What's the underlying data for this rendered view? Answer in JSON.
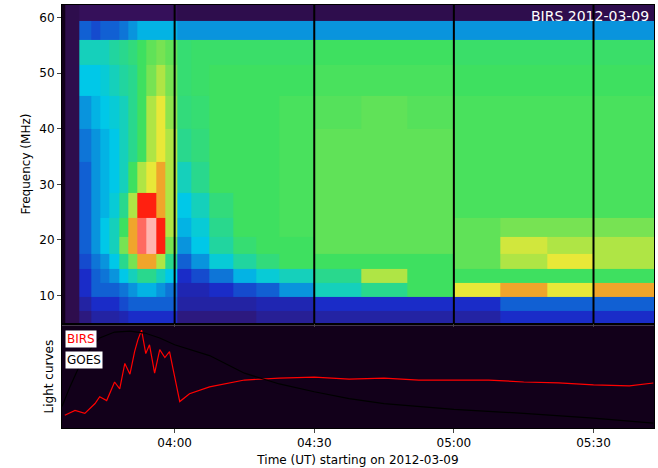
{
  "chart_data": [
    {
      "type": "heatmap",
      "title": "BIRS 2012-03-09",
      "ylabel": "Frequency (MHz)",
      "xlim": [
        "2012-03-09 03:35:48",
        "2012-03-09 05:43:00"
      ],
      "xticks": [
        {
          "value": "2012-03-09 04:00",
          "label": "04:00"
        },
        {
          "value": "2012-03-09 04:30",
          "label": "04:30"
        },
        {
          "value": "2012-03-09 05:00",
          "label": "05:00"
        },
        {
          "value": "2012-03-09 05:30",
          "label": "05:30"
        }
      ],
      "ylim": [
        5,
        62.3
      ],
      "yticks": [
        10,
        20,
        30,
        40,
        50,
        60
      ],
      "tick_labels": "y",
      "grid": true,
      "zlim": [
        0,
        10
      ],
      "x": [
        "2012-03-09 03:38",
        "2012-03-09 03:41",
        "2012-03-09 03:43",
        "2012-03-09 03:45",
        "2012-03-09 03:47",
        "2012-03-09 03:49",
        "2012-03-09 03:51",
        "2012-03-09 03:53",
        "2012-03-09 03:55",
        "2012-03-09 03:57",
        "2012-03-09 03:59",
        "2012-03-09 04:02",
        "2012-03-09 04:05",
        "2012-03-09 04:10",
        "2012-03-09 04:15",
        "2012-03-09 04:20",
        "2012-03-09 04:25",
        "2012-03-09 04:35",
        "2012-03-09 04:45",
        "2012-03-09 04:55",
        "2012-03-09 05:05",
        "2012-03-09 05:15",
        "2012-03-09 05:25",
        "2012-03-09 05:35",
        "2012-03-09 05:42"
      ],
      "y": [
        6,
        8.5,
        11,
        13.5,
        16,
        19,
        22,
        26,
        31,
        37,
        43,
        49,
        54,
        58,
        61
      ],
      "z": [
        [
          0.8,
          1.5,
          2,
          2,
          2,
          2.2,
          2.5,
          2.5,
          2.5,
          2.5,
          2.5,
          1.5,
          1.5,
          1.5,
          1.5,
          1.8,
          1.8,
          2,
          2,
          2,
          2,
          2.5,
          2.5,
          2.5,
          2.5
        ],
        [
          0.8,
          2,
          2.5,
          2.5,
          2.5,
          2.8,
          3,
          3,
          3,
          3,
          3,
          2,
          2,
          2,
          2,
          2.2,
          2.2,
          2.5,
          2.5,
          2.5,
          2.5,
          3,
          3,
          3,
          3
        ],
        [
          0.8,
          2.5,
          3,
          3,
          3,
          3.2,
          3.5,
          3.8,
          3.8,
          3.5,
          3.2,
          2.2,
          2.2,
          2.5,
          2.8,
          3,
          3.5,
          4.5,
          5,
          5.5,
          7,
          7.5,
          7,
          7.5,
          7.5
        ],
        [
          0.8,
          2.5,
          3,
          3.2,
          3.5,
          4,
          4.5,
          5,
          5,
          4.5,
          4,
          2.5,
          2.8,
          3.2,
          3.8,
          4.2,
          4.5,
          5,
          6.5,
          5.5,
          5.5,
          5.5,
          5.5,
          5.5,
          5.5
        ],
        [
          0.8,
          2.8,
          3.2,
          3.5,
          4,
          5,
          6,
          7.5,
          7.5,
          6.5,
          5,
          3,
          3.5,
          4.2,
          4.8,
          5.2,
          5.5,
          5.5,
          5.5,
          5.5,
          5.8,
          6.5,
          7,
          6.5,
          6.5
        ],
        [
          0.8,
          3,
          3.5,
          4,
          4.5,
          6,
          7.5,
          9,
          9.5,
          8.5,
          6,
          3.5,
          4,
          4.8,
          5.3,
          5.5,
          5.5,
          5.8,
          5.8,
          5.8,
          5.8,
          6.8,
          6.5,
          6.5,
          6.5
        ],
        [
          0.8,
          3,
          3.5,
          4,
          4.5,
          5.5,
          7.5,
          9,
          9.5,
          8.5,
          6.5,
          3.8,
          4.2,
          5,
          5.5,
          5.5,
          5.6,
          5.8,
          5.8,
          5.8,
          5.8,
          6,
          6,
          6,
          6
        ],
        [
          0.8,
          3,
          3.5,
          3.8,
          4.2,
          5,
          6.5,
          8.5,
          8.5,
          7.5,
          6.5,
          4,
          4.5,
          5.2,
          5.5,
          5.5,
          5.6,
          5.8,
          5.8,
          5.8,
          5.6,
          5.6,
          5.6,
          5.6,
          5.6
        ],
        [
          0.8,
          3,
          3.5,
          3.8,
          4,
          4.5,
          5.5,
          6.5,
          7,
          7.5,
          6.5,
          4.5,
          5,
          5.5,
          5.5,
          5.5,
          5.6,
          5.8,
          5.8,
          5.8,
          5.6,
          5.6,
          5.6,
          5.6,
          5.6
        ],
        [
          0.8,
          3.2,
          3.5,
          3.8,
          4,
          4.5,
          5,
          5.5,
          6.5,
          7,
          6.5,
          5,
          5.2,
          5.5,
          5.5,
          5.5,
          5.6,
          5.8,
          5.8,
          5.8,
          5.6,
          5.6,
          5.6,
          5.6,
          5.6
        ],
        [
          0.8,
          3.5,
          3.8,
          4,
          4.2,
          4.5,
          5,
          5.5,
          6.5,
          7,
          6.2,
          5.2,
          5.3,
          5.5,
          5.5,
          5.5,
          5.6,
          5.7,
          5.8,
          5.7,
          5.6,
          5.6,
          5.6,
          5.6,
          5.6
        ],
        [
          0.8,
          4,
          4,
          4.2,
          4.5,
          4.8,
          5,
          5.5,
          6,
          6.5,
          6,
          5.3,
          5.4,
          5.5,
          5.5,
          5.5,
          5.5,
          5.6,
          5.6,
          5.6,
          5.5,
          5.5,
          5.5,
          5.5,
          5.5
        ],
        [
          0.8,
          4.5,
          4.5,
          4.5,
          4.8,
          5,
          5.2,
          5.5,
          5.8,
          6,
          5.8,
          5.3,
          5.4,
          5.4,
          5.4,
          5.4,
          5.4,
          5.5,
          5.5,
          5.5,
          5.4,
          5.4,
          5.4,
          5.4,
          5.4
        ],
        [
          0.8,
          3,
          2.8,
          3,
          3,
          3.2,
          3.5,
          3.8,
          3.8,
          3.8,
          3.8,
          3.5,
          3.5,
          3.5,
          3.5,
          3.5,
          3.5,
          3.5,
          3.5,
          3.5,
          3.5,
          3.5,
          3.5,
          3.5,
          3.5
        ],
        [
          0.8,
          1,
          1,
          1,
          1,
          1,
          1,
          1,
          1,
          1,
          1,
          0.8,
          0.8,
          0.8,
          0.8,
          0.8,
          0.8,
          0.8,
          0.8,
          0.8,
          0.8,
          0.8,
          0.8,
          0.8,
          0.8
        ]
      ]
    },
    {
      "type": "line",
      "xlabel": "Time (UT) starting on 2012-03-09",
      "ylabel": "Light curves",
      "xlim": [
        "2012-03-09 03:35:48",
        "2012-03-09 05:43:00"
      ],
      "xticks": [
        {
          "value": "2012-03-09 04:00",
          "label": "04:00"
        },
        {
          "value": "2012-03-09 04:30",
          "label": "04:30"
        },
        {
          "value": "2012-03-09 05:00",
          "label": "05:00"
        },
        {
          "value": "2012-03-09 05:30",
          "label": "05:30"
        }
      ],
      "ylim": [
        0,
        1.05
      ],
      "tick_labels": "x",
      "grid": false,
      "legend": "upper left",
      "series": [
        {
          "name": "BIRS",
          "color": "#ff0000",
          "x": [
            "2012-03-09 03:36:24",
            "2012-03-09 03:38:36",
            "2012-03-09 03:40:42",
            "2012-03-09 03:42:54",
            "2012-03-09 03:43:54",
            "2012-03-09 03:45:24",
            "2012-03-09 03:47:06",
            "2012-03-09 03:48:12",
            "2012-03-09 03:49:18",
            "2012-03-09 03:50:24",
            "2012-03-09 03:51:24",
            "2012-03-09 03:52:06",
            "2012-03-09 03:52:54",
            "2012-03-09 03:53:48",
            "2012-03-09 03:54:36",
            "2012-03-09 03:55:42",
            "2012-03-09 03:56:48",
            "2012-03-09 03:57:54",
            "2012-03-09 03:58:54",
            "2012-03-09 04:00:00",
            "2012-03-09 04:01:06",
            "2012-03-09 04:03:12",
            "2012-03-09 04:07:30",
            "2012-03-09 04:15:00",
            "2012-03-09 04:22:30",
            "2012-03-09 04:30:00",
            "2012-03-09 04:37:30",
            "2012-03-09 04:45:00",
            "2012-03-09 04:52:30",
            "2012-03-09 05:00:00",
            "2012-03-09 05:07:30",
            "2012-03-09 05:15:00",
            "2012-03-09 05:22:30",
            "2012-03-09 05:30:00",
            "2012-03-09 05:37:42",
            "2012-03-09 05:42:51"
          ],
          "values": [
            0.13,
            0.18,
            0.15,
            0.25,
            0.32,
            0.28,
            0.47,
            0.4,
            0.66,
            0.55,
            0.78,
            0.9,
            1.0,
            0.76,
            0.85,
            0.56,
            0.8,
            0.72,
            0.78,
            0.54,
            0.27,
            0.35,
            0.42,
            0.49,
            0.51,
            0.52,
            0.5,
            0.51,
            0.49,
            0.49,
            0.49,
            0.47,
            0.46,
            0.44,
            0.43,
            0.46
          ]
        },
        {
          "name": "GOES",
          "color": "#000000",
          "x": [
            "2012-03-09 03:35:48",
            "2012-03-09 03:37:30",
            "2012-03-09 03:39:36",
            "2012-03-09 03:41:48",
            "2012-03-09 03:43:54",
            "2012-03-09 03:47:06",
            "2012-03-09 03:50:24",
            "2012-03-09 03:53:36",
            "2012-03-09 03:56:48",
            "2012-03-09 04:00:00",
            "2012-03-09 04:07:30",
            "2012-03-09 04:15:00",
            "2012-03-09 04:22:30",
            "2012-03-09 04:30:00",
            "2012-03-09 04:37:30",
            "2012-03-09 04:45:00",
            "2012-03-09 05:00:00",
            "2012-03-09 05:15:00",
            "2012-03-09 05:30:00",
            "2012-03-09 05:42:51"
          ],
          "values": [
            0.22,
            0.42,
            0.64,
            0.8,
            0.92,
            0.98,
            0.99,
            0.97,
            0.92,
            0.85,
            0.74,
            0.56,
            0.45,
            0.37,
            0.3,
            0.25,
            0.19,
            0.15,
            0.1,
            0.05
          ]
        }
      ]
    }
  ]
}
